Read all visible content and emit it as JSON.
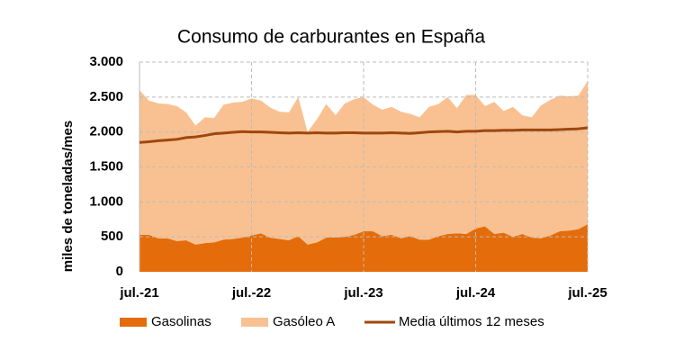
{
  "chart_data": {
    "type": "area",
    "stacked": true,
    "title": "Consumo de carburantes en España",
    "y_label": "miles de toneladas/mes",
    "categories": [
      "jul.-21",
      null,
      null,
      null,
      null,
      null,
      null,
      null,
      null,
      null,
      null,
      null,
      "jul.-22",
      null,
      null,
      null,
      null,
      null,
      null,
      null,
      null,
      null,
      null,
      null,
      "jul.-23",
      null,
      null,
      null,
      null,
      null,
      null,
      null,
      null,
      null,
      null,
      null,
      "jul.-24",
      null,
      null,
      null,
      null,
      null,
      null,
      null,
      null,
      null,
      null,
      null,
      "jul.-25"
    ],
    "series": [
      {
        "name": "Gasolinas",
        "type": "area",
        "color": "#e46c0a",
        "values": [
          530,
          530,
          480,
          480,
          440,
          450,
          390,
          410,
          420,
          460,
          470,
          490,
          520,
          550,
          490,
          470,
          450,
          510,
          390,
          420,
          490,
          490,
          500,
          530,
          580,
          580,
          510,
          530,
          480,
          510,
          460,
          460,
          510,
          540,
          550,
          540,
          620,
          650,
          540,
          560,
          500,
          540,
          490,
          480,
          520,
          580,
          590,
          610,
          680
        ]
      },
      {
        "name": "Gasóleo A",
        "type": "area",
        "color": "#f9c191",
        "values": [
          2070,
          1920,
          1930,
          1920,
          1930,
          1830,
          1700,
          1800,
          1780,
          1930,
          1950,
          1940,
          1960,
          1900,
          1860,
          1820,
          1830,
          1990,
          1610,
          1760,
          1910,
          1750,
          1910,
          1940,
          1920,
          1810,
          1810,
          1830,
          1810,
          1750,
          1750,
          1900,
          1890,
          1960,
          1790,
          1990,
          1910,
          1720,
          1890,
          1740,
          1860,
          1700,
          1720,
          1900,
          1940,
          1940,
          1920,
          1910,
          2050
        ]
      },
      {
        "name": "Media últimos 12 meses",
        "type": "line",
        "color": "#a0470d",
        "values": [
          1850,
          1860,
          1875,
          1885,
          1895,
          1920,
          1930,
          1950,
          1975,
          1985,
          1995,
          2005,
          2000,
          2000,
          1995,
          1990,
          1985,
          1990,
          1985,
          1990,
          1985,
          1985,
          1990,
          1990,
          1985,
          1985,
          1985,
          1990,
          1985,
          1980,
          1990,
          2000,
          2005,
          2010,
          2000,
          2010,
          2010,
          2020,
          2020,
          2025,
          2025,
          2030,
          2030,
          2030,
          2030,
          2035,
          2040,
          2045,
          2060
        ]
      }
    ],
    "ylim": [
      0,
      3000
    ],
    "yticks": [
      0,
      500,
      {
        "value": 1000,
        "label": "1.000"
      },
      {
        "value": 1500,
        "label": "1.500"
      },
      {
        "value": 2000,
        "label": "2.000"
      },
      {
        "value": 2500,
        "label": "2.500"
      },
      {
        "value": 3000,
        "label": "3.000"
      }
    ],
    "grid": true,
    "legend": "bottom"
  }
}
